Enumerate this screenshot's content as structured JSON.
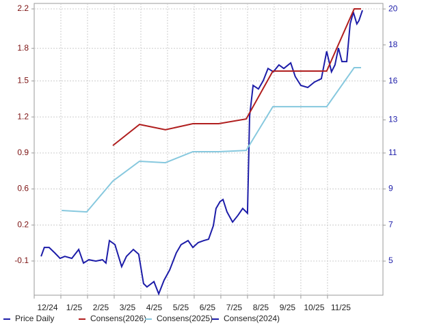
{
  "chart_data": {
    "type": "line",
    "xlim": [
      0,
      13.08
    ],
    "xticks": [
      {
        "value": 0,
        "label": "12/24"
      },
      {
        "value": 1,
        "label": "1/25"
      },
      {
        "value": 2,
        "label": "2/25"
      },
      {
        "value": 3,
        "label": "3/25"
      },
      {
        "value": 4,
        "label": "4/25"
      },
      {
        "value": 5,
        "label": "5/25"
      },
      {
        "value": 6,
        "label": "6/25"
      },
      {
        "value": 7,
        "label": "7/25"
      },
      {
        "value": 8,
        "label": "8/25"
      },
      {
        "value": 9,
        "label": "9/25"
      },
      {
        "value": 10,
        "label": "10/25"
      },
      {
        "value": 11,
        "label": "11/25"
      }
    ],
    "ylim": [
      -0.412,
      2.25
    ],
    "yticks": [
      -0.1,
      {
        "value": 0.2286,
        "label": "0.2"
      },
      {
        "value": 0.5571,
        "label": "0.6"
      },
      {
        "value": 0.8857,
        "label": "0.9"
      },
      {
        "value": 1.2143,
        "label": "1.2"
      },
      {
        "value": 1.5429,
        "label": "1.5"
      },
      {
        "value": 1.84,
        "label": "1.8"
      },
      2.2
    ],
    "y2lim": [
      2.97,
      20.33
    ],
    "y2ticks": [
      5,
      {
        "value": 7.14,
        "label": "7"
      },
      {
        "value": 9.29,
        "label": "9"
      },
      {
        "value": 11.43,
        "label": "11"
      },
      {
        "value": 13.4,
        "label": "13"
      },
      {
        "value": 15.71,
        "label": "16"
      },
      {
        "value": 17.86,
        "label": "18"
      },
      20
    ],
    "grid": true,
    "legend": "bottom",
    "series": [
      {
        "name": "Price Daily",
        "color": "#1c1ca8",
        "axis": "y2",
        "x": [
          0.26,
          0.38,
          0.56,
          0.77,
          0.97,
          1.15,
          1.41,
          1.67,
          1.85,
          2.05,
          2.31,
          2.56,
          2.69,
          2.82,
          3.03,
          3.28,
          3.46,
          3.72,
          3.92,
          4.1,
          4.23,
          4.49,
          4.67,
          4.87,
          5.08,
          5.33,
          5.51,
          5.77,
          5.95,
          6.15,
          6.36,
          6.54,
          6.72,
          6.82,
          6.97,
          7.08,
          7.23,
          7.44,
          7.64,
          7.82,
          8.0,
          8.08,
          8.21,
          8.41,
          8.59,
          8.77,
          8.97,
          9.18,
          9.36,
          9.62,
          9.79,
          10.0,
          10.26,
          10.51,
          10.77,
          10.97,
          11.15,
          11.28,
          11.41,
          11.54,
          11.72,
          11.85,
          11.97,
          12.1,
          12.18,
          12.31
        ],
        "values": [
          5.28,
          5.81,
          5.81,
          5.49,
          5.16,
          5.28,
          5.16,
          5.69,
          4.88,
          5.08,
          5.0,
          5.08,
          4.88,
          6.22,
          5.98,
          4.67,
          5.28,
          5.69,
          5.41,
          3.66,
          3.46,
          3.78,
          3.05,
          3.86,
          4.47,
          5.49,
          5.98,
          6.22,
          5.81,
          6.1,
          6.22,
          6.3,
          7.11,
          8.13,
          8.54,
          8.66,
          7.93,
          7.32,
          7.72,
          8.13,
          7.85,
          13.62,
          15.45,
          15.24,
          15.73,
          16.46,
          16.26,
          16.67,
          16.46,
          16.79,
          15.98,
          15.45,
          15.33,
          15.65,
          15.85,
          17.48,
          16.26,
          16.67,
          17.68,
          16.87,
          16.87,
          19.11,
          19.8,
          19.11,
          19.31,
          19.92
        ]
      },
      {
        "name": "Consens(2026)",
        "color": "#b01e1e",
        "x": [
          2.95,
          3.95,
          4.92,
          5.95,
          6.92,
          7.95,
          8.95,
          10.97,
          12.0,
          12.26
        ],
        "values": [
          0.953,
          1.146,
          1.097,
          1.153,
          1.153,
          1.196,
          1.633,
          1.633,
          2.2,
          2.2
        ]
      },
      {
        "name": "Consens(2025)",
        "color": "#86c8de",
        "x": [
          1.03,
          1.97,
          2.95,
          3.95,
          4.92,
          5.95,
          6.92,
          7.95,
          8.95,
          10.97,
          12.0,
          12.26
        ],
        "values": [
          0.361,
          0.348,
          0.629,
          0.81,
          0.797,
          0.897,
          0.897,
          0.909,
          1.308,
          1.308,
          1.664,
          1.664
        ]
      },
      {
        "name": "Consens(2024)",
        "color": "#1c1ca8",
        "x": [],
        "values": []
      }
    ]
  }
}
